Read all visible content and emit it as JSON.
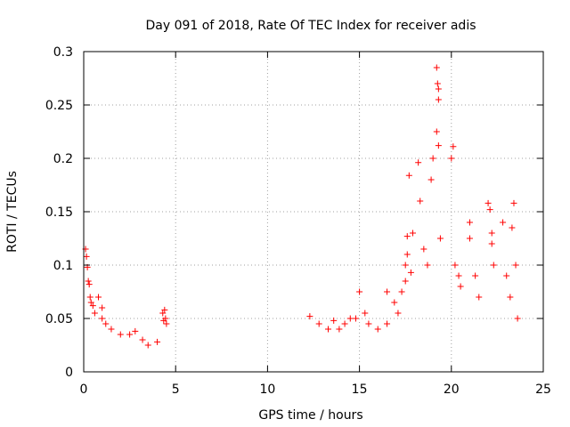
{
  "chart_data": {
    "type": "scatter",
    "title": "Day 091 of 2018, Rate Of TEC Index for receiver adis",
    "xlabel": "GPS time / hours",
    "ylabel": "ROTI / TECUs",
    "xlim": [
      0,
      25
    ],
    "ylim": [
      0,
      0.3
    ],
    "xticks": [
      0,
      5,
      10,
      15,
      20,
      25
    ],
    "yticks": [
      0,
      0.05,
      0.1,
      0.15,
      0.2,
      0.25,
      0.3
    ],
    "xtick_labels": [
      "0",
      "5",
      "10",
      "15",
      "20",
      "25"
    ],
    "ytick_labels": [
      "0",
      "0.05",
      "0.1",
      "0.15",
      "0.2",
      "0.25",
      "0.3"
    ],
    "grid": true,
    "marker": "+",
    "color": "#ff0000",
    "series": [
      {
        "name": "ROTI",
        "points": [
          [
            0.1,
            0.115
          ],
          [
            0.15,
            0.108
          ],
          [
            0.2,
            0.098
          ],
          [
            0.25,
            0.085
          ],
          [
            0.3,
            0.082
          ],
          [
            0.35,
            0.07
          ],
          [
            0.4,
            0.065
          ],
          [
            0.5,
            0.062
          ],
          [
            0.6,
            0.055
          ],
          [
            0.8,
            0.07
          ],
          [
            1.0,
            0.06
          ],
          [
            1.0,
            0.05
          ],
          [
            1.2,
            0.045
          ],
          [
            1.5,
            0.04
          ],
          [
            2.0,
            0.035
          ],
          [
            2.5,
            0.035
          ],
          [
            2.8,
            0.038
          ],
          [
            3.2,
            0.03
          ],
          [
            3.5,
            0.025
          ],
          [
            4.0,
            0.028
          ],
          [
            4.3,
            0.055
          ],
          [
            4.35,
            0.048
          ],
          [
            4.4,
            0.058
          ],
          [
            4.45,
            0.05
          ],
          [
            4.5,
            0.045
          ],
          [
            12.3,
            0.052
          ],
          [
            12.8,
            0.045
          ],
          [
            13.3,
            0.04
          ],
          [
            13.6,
            0.048
          ],
          [
            13.9,
            0.04
          ],
          [
            14.2,
            0.045
          ],
          [
            14.5,
            0.05
          ],
          [
            14.8,
            0.05
          ],
          [
            15.0,
            0.075
          ],
          [
            15.3,
            0.055
          ],
          [
            15.5,
            0.045
          ],
          [
            16.0,
            0.04
          ],
          [
            16.5,
            0.045
          ],
          [
            16.5,
            0.075
          ],
          [
            16.9,
            0.065
          ],
          [
            17.1,
            0.055
          ],
          [
            17.3,
            0.075
          ],
          [
            17.5,
            0.085
          ],
          [
            17.5,
            0.1
          ],
          [
            17.6,
            0.11
          ],
          [
            17.6,
            0.127
          ],
          [
            17.7,
            0.184
          ],
          [
            17.8,
            0.093
          ],
          [
            17.9,
            0.13
          ],
          [
            18.2,
            0.196
          ],
          [
            18.3,
            0.16
          ],
          [
            18.5,
            0.115
          ],
          [
            18.7,
            0.1
          ],
          [
            18.9,
            0.18
          ],
          [
            19.0,
            0.2
          ],
          [
            19.2,
            0.285
          ],
          [
            19.25,
            0.27
          ],
          [
            19.3,
            0.265
          ],
          [
            19.3,
            0.255
          ],
          [
            19.2,
            0.225
          ],
          [
            19.3,
            0.212
          ],
          [
            19.4,
            0.125
          ],
          [
            20.0,
            0.2
          ],
          [
            20.1,
            0.211
          ],
          [
            20.2,
            0.1
          ],
          [
            20.4,
            0.09
          ],
          [
            20.5,
            0.08
          ],
          [
            21.0,
            0.14
          ],
          [
            21.0,
            0.125
          ],
          [
            21.3,
            0.09
          ],
          [
            21.5,
            0.07
          ],
          [
            22.0,
            0.158
          ],
          [
            22.1,
            0.152
          ],
          [
            22.2,
            0.13
          ],
          [
            22.2,
            0.12
          ],
          [
            22.3,
            0.1
          ],
          [
            22.8,
            0.14
          ],
          [
            23.0,
            0.09
          ],
          [
            23.2,
            0.07
          ],
          [
            23.3,
            0.135
          ],
          [
            23.4,
            0.158
          ],
          [
            23.5,
            0.1
          ],
          [
            23.6,
            0.05
          ]
        ]
      }
    ]
  }
}
